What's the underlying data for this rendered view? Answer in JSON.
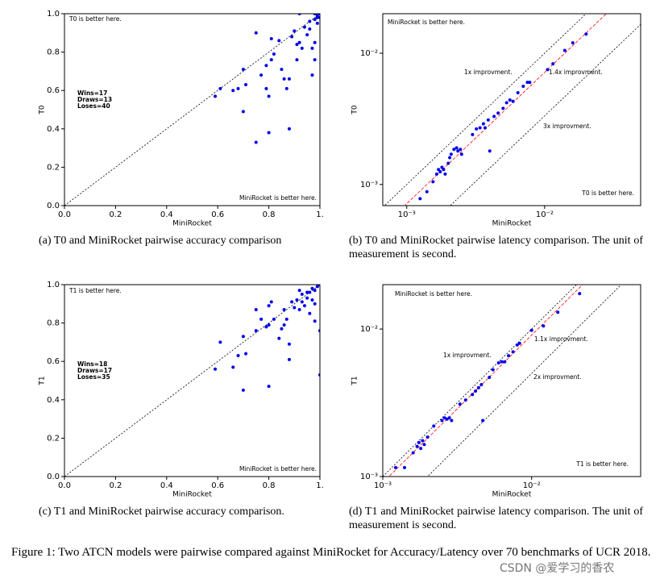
{
  "figure_caption": "Figure 1: Two ATCN models were pairwise compared against MiniRocket for Accuracy/Latency over 70 benchmarks of UCR 2018.",
  "watermark": "CSDN @爱学习的香农",
  "chart_data": [
    {
      "type": "scatter",
      "caption": "(a) T0 and MiniRocket pairwise accuracy comparison",
      "xlabel": "MiniRocket",
      "ylabel": "T0",
      "color": "#0000ee",
      "log": false,
      "xlim": [
        0,
        1
      ],
      "ylim": [
        0,
        1
      ],
      "xticks": [
        {
          "value": 0,
          "label": "0.0"
        },
        0.2,
        0.4,
        0.6,
        0.8,
        {
          "value": 1,
          "label": "1."
        }
      ],
      "yticks": [
        {
          "value": 0,
          "label": "0.0"
        },
        0.2,
        0.4,
        0.6,
        0.8,
        {
          "value": 1,
          "label": "1.0"
        }
      ],
      "ref_lines": [
        {
          "factor": 1,
          "color": "#000000",
          "dash": "dotted"
        }
      ],
      "annotations": [
        "T0 is better here.",
        "MiniRocket is better here.",
        "Wins=17",
        "Draws=13",
        "Loses=40"
      ],
      "x": [
        0.59,
        0.61,
        0.66,
        0.68,
        0.7,
        0.7,
        0.71,
        0.75,
        0.75,
        0.77,
        0.79,
        0.79,
        0.8,
        0.8,
        0.81,
        0.81,
        0.82,
        0.84,
        0.85,
        0.86,
        0.87,
        0.88,
        0.88,
        0.89,
        0.9,
        0.91,
        0.91,
        0.92,
        0.92,
        0.93,
        0.94,
        0.95,
        0.96,
        0.96,
        0.97,
        0.97,
        0.98,
        0.98,
        0.98,
        0.98,
        0.99,
        0.99,
        0.99,
        1.0,
        1.0
      ],
      "y": [
        0.57,
        0.61,
        0.6,
        0.61,
        0.71,
        0.49,
        0.63,
        0.9,
        0.33,
        0.68,
        0.73,
        0.61,
        0.57,
        0.38,
        0.76,
        0.87,
        0.79,
        0.86,
        0.71,
        0.66,
        0.61,
        0.4,
        0.66,
        0.88,
        0.91,
        0.76,
        0.84,
        1.0,
        0.85,
        0.82,
        0.93,
        0.89,
        0.96,
        0.92,
        0.68,
        0.82,
        0.97,
        1.0,
        0.85,
        0.76,
        0.98,
        0.95,
        0.99,
        0.98,
        1.0
      ]
    },
    {
      "type": "scatter",
      "caption": "(b) T0 and MiniRocket pairwise latency comparison. The unit of measurement is second.",
      "xlabel": "MiniRocket",
      "ylabel": "T0",
      "color": "#0000ee",
      "log": true,
      "xlim": [
        0.00067,
        0.0497
      ],
      "ylim": [
        0.00069,
        0.02
      ],
      "xticks": [
        {
          "value": 0.001,
          "label": "10⁻³"
        },
        {
          "value": 0.01,
          "label": "10⁻²"
        }
      ],
      "yticks": [
        {
          "value": 0.001,
          "label": "10⁻³"
        },
        {
          "value": 0.01,
          "label": "10⁻²"
        }
      ],
      "ref_lines": [
        {
          "factor": 1,
          "color": "#000000",
          "dash": "dotted"
        },
        {
          "factor": 1.4,
          "color": "#ff0000",
          "dash": "dashed"
        },
        {
          "factor": 3,
          "color": "#000000",
          "dash": "dotted"
        }
      ],
      "annotations": [
        "MiniRocket is better here.",
        "1x improvment.",
        "1.4x improvment.",
        "3x improvment.",
        "T0 is better here."
      ],
      "x": [
        0.00125,
        0.0014,
        0.00155,
        0.00165,
        0.0017,
        0.00175,
        0.0018,
        0.00185,
        0.0019,
        0.002,
        0.00205,
        0.0021,
        0.0022,
        0.0023,
        0.00235,
        0.00245,
        0.0025,
        0.003,
        0.0032,
        0.0034,
        0.0036,
        0.0037,
        0.0039,
        0.004,
        0.0043,
        0.0046,
        0.005,
        0.0053,
        0.0056,
        0.0059,
        0.0064,
        0.007,
        0.0075,
        0.0078,
        0.0105,
        0.0115,
        0.014,
        0.016,
        0.02
      ],
      "y": [
        0.00078,
        0.00088,
        0.00105,
        0.0012,
        0.0013,
        0.00125,
        0.00135,
        0.0013,
        0.0012,
        0.00145,
        0.0016,
        0.0017,
        0.00185,
        0.0019,
        0.0018,
        0.00185,
        0.0017,
        0.0024,
        0.00265,
        0.0027,
        0.0029,
        0.0027,
        0.0031,
        0.0018,
        0.0033,
        0.0035,
        0.0038,
        0.0042,
        0.0044,
        0.0043,
        0.005,
        0.0056,
        0.006,
        0.006,
        0.0075,
        0.0083,
        0.0105,
        0.012,
        0.014
      ]
    },
    {
      "type": "scatter",
      "caption": "(c) T1 and MiniRocket pairwise accuracy comparison.",
      "xlabel": "MiniRocket",
      "ylabel": "T1",
      "color": "#0000ee",
      "log": false,
      "xlim": [
        0,
        1
      ],
      "ylim": [
        0,
        1
      ],
      "xticks": [
        {
          "value": 0,
          "label": "0.0"
        },
        0.2,
        0.4,
        0.6,
        0.8,
        {
          "value": 1,
          "label": "1."
        }
      ],
      "yticks": [
        {
          "value": 0,
          "label": "0.0"
        },
        0.2,
        0.4,
        0.6,
        0.8,
        {
          "value": 1,
          "label": "1.0"
        }
      ],
      "ref_lines": [
        {
          "factor": 1,
          "color": "#000000",
          "dash": "dotted"
        }
      ],
      "annotations": [
        "T1 is better here.",
        "MiniRocket is better here.",
        "Wins=18",
        "Draws=17",
        "Loses=35"
      ],
      "x": [
        0.59,
        0.61,
        0.66,
        0.68,
        0.7,
        0.7,
        0.71,
        0.75,
        0.75,
        0.77,
        0.79,
        0.8,
        0.8,
        0.8,
        0.81,
        0.82,
        0.84,
        0.85,
        0.86,
        0.86,
        0.87,
        0.88,
        0.88,
        0.89,
        0.9,
        0.91,
        0.92,
        0.92,
        0.93,
        0.93,
        0.94,
        0.95,
        0.95,
        0.96,
        0.96,
        0.97,
        0.97,
        0.98,
        0.98,
        0.98,
        0.99,
        1.0,
        1.0,
        1.0
      ],
      "y": [
        0.56,
        0.7,
        0.57,
        0.63,
        0.45,
        0.73,
        0.64,
        0.76,
        0.87,
        0.82,
        0.78,
        0.89,
        0.79,
        0.47,
        0.91,
        0.82,
        0.72,
        0.77,
        0.79,
        0.87,
        0.82,
        0.69,
        0.61,
        0.91,
        0.88,
        0.92,
        0.87,
        0.97,
        0.91,
        0.95,
        0.89,
        0.96,
        0.93,
        0.85,
        0.96,
        0.98,
        0.92,
        0.81,
        0.97,
        0.9,
        0.99,
        0.76,
        0.53,
        1.0
      ]
    },
    {
      "type": "scatter",
      "caption": "(d) T1 and MiniRocket pairwise latency comparison. The unit of measurement is second.",
      "xlabel": "MiniRocket",
      "ylabel": "T1",
      "color": "#0000ee",
      "log": true,
      "xlim": [
        0.001,
        0.054
      ],
      "ylim": [
        0.001,
        0.02
      ],
      "xticks": [
        {
          "value": 0.001,
          "label": "10⁻³"
        },
        {
          "value": 0.01,
          "label": "10⁻²"
        }
      ],
      "yticks": [
        {
          "value": 0.001,
          "label": "10⁻³"
        },
        {
          "value": 0.01,
          "label": "10⁻²"
        }
      ],
      "ref_lines": [
        {
          "factor": 1,
          "color": "#000000",
          "dash": "dotted"
        },
        {
          "factor": 1.1,
          "color": "#ff0000",
          "dash": "dashed"
        },
        {
          "factor": 2,
          "color": "#000000",
          "dash": "dotted"
        }
      ],
      "annotations": [
        "MiniRocket is better here.",
        "1.1x improvment.",
        "1x improvment.",
        "2x improvment.",
        "T1 is better here."
      ],
      "x": [
        0.00122,
        0.0014,
        0.0016,
        0.0017,
        0.00175,
        0.0018,
        0.00185,
        0.0019,
        0.002,
        0.0022,
        0.0025,
        0.0026,
        0.0027,
        0.0028,
        0.0029,
        0.0033,
        0.0036,
        0.004,
        0.0042,
        0.0044,
        0.0046,
        0.0047,
        0.0052,
        0.0055,
        0.006,
        0.0063,
        0.0066,
        0.007,
        0.0075,
        0.008,
        0.0083,
        0.01,
        0.012,
        0.015,
        0.021
      ],
      "y": [
        0.00115,
        0.00115,
        0.00145,
        0.0016,
        0.0017,
        0.00155,
        0.00175,
        0.00165,
        0.00185,
        0.0022,
        0.0024,
        0.0025,
        0.00245,
        0.0025,
        0.0024,
        0.0031,
        0.0033,
        0.0036,
        0.0038,
        0.004,
        0.0042,
        0.0024,
        0.0047,
        0.0053,
        0.0059,
        0.006,
        0.006,
        0.0066,
        0.007,
        0.0078,
        0.008,
        0.0098,
        0.0105,
        0.013,
        0.0174
      ]
    }
  ]
}
